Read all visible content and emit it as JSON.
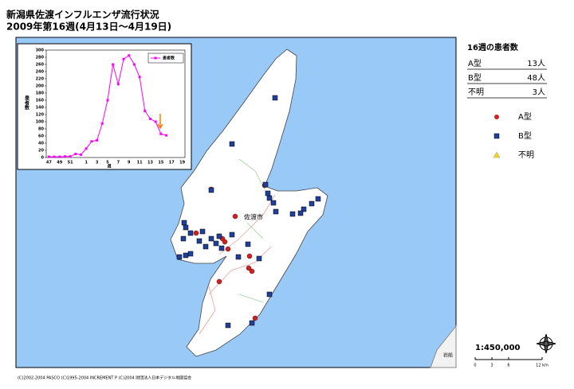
{
  "header": {
    "title": "新潟県佐渡インフルエンザ流行状況",
    "subtitle": "2009年第16週(4月13日～4月19日)"
  },
  "chart_data": {
    "type": "line",
    "categories": [
      "47",
      null,
      "49",
      null,
      "51",
      null,
      null,
      "1",
      null,
      "3",
      null,
      "5",
      null,
      "7",
      null,
      "9",
      null,
      "11",
      null,
      "13",
      null,
      "15",
      null,
      "17",
      null,
      "19"
    ],
    "series": [
      {
        "name": "患者数",
        "color": "#ff00ff",
        "values": [
          2,
          2,
          2,
          3,
          3,
          10,
          8,
          25,
          45,
          48,
          95,
          160,
          260,
          205,
          275,
          285,
          260,
          225,
          130,
          108,
          100,
          66,
          62,
          null,
          null,
          null
        ]
      }
    ],
    "ylim": [
      0,
      300
    ],
    "yticks": [
      0,
      20,
      40,
      60,
      80,
      100,
      120,
      140,
      160,
      180,
      200,
      220,
      240,
      260,
      280,
      300
    ],
    "x_label": "週",
    "y_label": "患者数",
    "grid": false
  },
  "summary": {
    "title": "16週の患者数",
    "rows": [
      [
        "A型",
        "13人"
      ],
      [
        "B型",
        "48人"
      ],
      [
        "不明",
        "3人"
      ]
    ]
  },
  "legend": [
    {
      "label": "A型",
      "color": "#cc2222",
      "shape": "circle"
    },
    {
      "label": "B型",
      "color": "#1f3f99",
      "shape": "square"
    },
    {
      "label": "不明",
      "color": "#f2d21b",
      "shape": "triangle"
    }
  ],
  "map_labels": [
    "佐渡市",
    "岩船"
  ],
  "scale": {
    "ratio": "1:450,000",
    "ticks": [
      "0",
      "3",
      "6",
      "12 km"
    ]
  },
  "footer": "(C)2002-2004 PASCO (C)1995-2004 INCREMENT P (C)2004 財団法人日本デジタル地図協会"
}
